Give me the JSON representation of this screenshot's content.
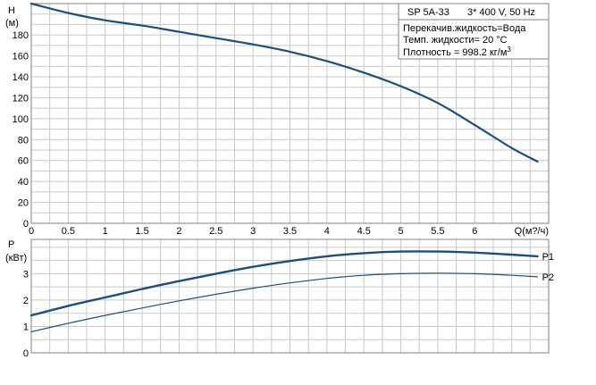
{
  "info_box": {
    "title": "SP 5A-33",
    "supply": "3* 400 V, 50 Hz",
    "line1": "Перекачив.жидкость=Вода",
    "line2": "Темп. жидкости= 20 °C",
    "line3": "Плотность = 998.2 кг/м",
    "line3_sup": "3"
  },
  "colors": {
    "head_curve": "#1f4e79",
    "power_p1": "#1f4e79",
    "power_p2": "#1f4e79",
    "grid": "#c8c8c8",
    "frame": "#808080",
    "axis": "#000000"
  },
  "chart_data": [
    {
      "type": "line",
      "panel": "head",
      "ylabel": "H",
      "yunit": "(м)",
      "xlabel": "Q(м?/ч)",
      "grid": true,
      "xlim": [
        0,
        7
      ],
      "ylim": [
        0,
        210
      ],
      "x_ticks": [
        "0",
        "0.5",
        "1",
        "1.5",
        "2",
        "2.5",
        "3",
        "3.5",
        "4",
        "4.5",
        "5",
        "5.5",
        "6"
      ],
      "y_ticks": [
        "0",
        "20",
        "40",
        "60",
        "80",
        "100",
        "120",
        "140",
        "160",
        "180"
      ],
      "series": [
        {
          "x": [
            0,
            0.5,
            1,
            1.5,
            2,
            2.5,
            3,
            3.5,
            4,
            4.5,
            5,
            5.5,
            6,
            6.5,
            6.85
          ],
          "values": [
            210,
            201,
            194,
            189,
            183,
            177,
            171,
            164,
            155,
            144,
            131,
            115,
            94,
            72,
            59
          ]
        }
      ]
    },
    {
      "type": "line",
      "panel": "power",
      "ylabel": "P",
      "yunit": "(кВт)",
      "grid": true,
      "xlim": [
        0,
        7
      ],
      "ylim": [
        0,
        4.3
      ],
      "y_ticks": [
        "0",
        "1",
        "2",
        "3"
      ],
      "series": [
        {
          "name": "P1",
          "x": [
            0,
            0.5,
            1,
            1.5,
            2,
            2.5,
            3,
            3.5,
            4,
            4.5,
            5,
            5.5,
            6,
            6.5,
            6.85
          ],
          "values": [
            1.42,
            1.78,
            2.1,
            2.42,
            2.72,
            3.0,
            3.26,
            3.48,
            3.66,
            3.78,
            3.84,
            3.84,
            3.8,
            3.72,
            3.66
          ]
        },
        {
          "name": "P2",
          "x": [
            0,
            0.5,
            1,
            1.5,
            2,
            2.5,
            3,
            3.5,
            4,
            4.5,
            5,
            5.5,
            6,
            6.5,
            6.85
          ],
          "values": [
            0.8,
            1.12,
            1.42,
            1.7,
            1.97,
            2.22,
            2.45,
            2.65,
            2.82,
            2.94,
            3.0,
            3.02,
            3.0,
            2.94,
            2.88
          ]
        }
      ]
    }
  ]
}
